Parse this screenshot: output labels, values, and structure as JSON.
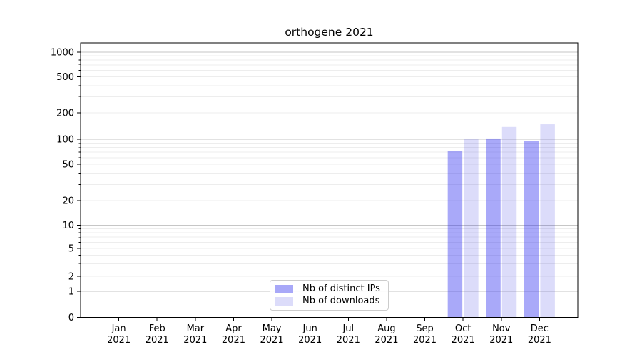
{
  "chart_data": {
    "type": "bar",
    "title": "orthogene 2021",
    "xlabel": "",
    "ylabel": "",
    "yscale": "symlog",
    "ytick_values": [
      0,
      1,
      2,
      5,
      10,
      20,
      50,
      100,
      200,
      500,
      1000
    ],
    "ylim": [
      0,
      1300
    ],
    "grid": true,
    "x_months": [
      "Jan",
      "Feb",
      "Mar",
      "Apr",
      "May",
      "Jun",
      "Jul",
      "Aug",
      "Sep",
      "Oct",
      "Nov",
      "Dec"
    ],
    "x_year": "2021",
    "legend_position": "lower center",
    "series": [
      {
        "name": "Nb of distinct IPs",
        "color": "rgba(40,40,240,0.4)",
        "color_hex": "#a8a8f8",
        "values": [
          0,
          0,
          0,
          0,
          0,
          0,
          0,
          0,
          0,
          72,
          102,
          95
        ]
      },
      {
        "name": "Nb of downloads",
        "color": "rgba(10,10,220,0.14)",
        "color_hex": "#dcdcfa",
        "values": [
          0,
          0,
          0,
          0,
          0,
          0,
          0,
          0,
          0,
          101,
          138,
          148
        ]
      }
    ],
    "colors": {
      "axis": "#000000",
      "text": "#000000",
      "grid_major": "#c6c6c6",
      "grid_minor": "#ededed"
    }
  }
}
